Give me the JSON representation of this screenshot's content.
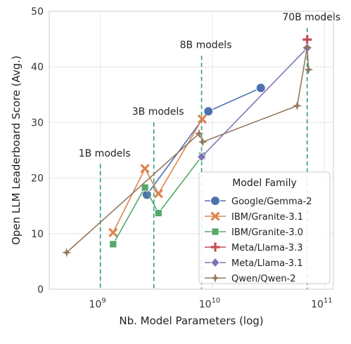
{
  "chart_data": {
    "type": "line",
    "xscale": "log",
    "xlim": [
      350000000,
      120000000000
    ],
    "ylim": [
      0,
      50
    ],
    "grid": true,
    "xlabel": "Nb. Model Parameters (log)",
    "ylabel": "Open LLM Leaderboard Score (Avg.)",
    "x_ticks": [
      {
        "value": 1000000000,
        "base": "10",
        "exp": "9"
      },
      {
        "value": 10000000000,
        "base": "10",
        "exp": "10"
      },
      {
        "value": 100000000000,
        "base": "10",
        "exp": "11"
      }
    ],
    "y_ticks": [
      0,
      10,
      20,
      30,
      40,
      50
    ],
    "legend": {
      "title": "Model Family",
      "placement": "lower right"
    },
    "annotations": [
      {
        "text": "1B models",
        "x": 1000000000,
        "y_top": 22.5
      },
      {
        "text": "3B models",
        "x": 3000000000,
        "y_top": 30
      },
      {
        "text": "8B models",
        "x": 8000000000,
        "y_top": 42
      },
      {
        "text": "70B models",
        "x": 70000000000,
        "y_top": 47
      }
    ],
    "series": [
      {
        "name": "Google/Gemma-2",
        "color": "#4c72b0",
        "marker": "circle",
        "points": [
          [
            2600000000,
            17
          ],
          [
            9200000000,
            32
          ],
          [
            27000000000,
            36.2
          ]
        ]
      },
      {
        "name": "IBM/Granite-3.1",
        "color": "#dd8452",
        "marker": "x",
        "points": [
          [
            1300000000,
            10.2
          ],
          [
            2500000000,
            21.7
          ],
          [
            3300000000,
            17.2
          ],
          [
            8100000000,
            30.6
          ]
        ]
      },
      {
        "name": "IBM/Granite-3.0",
        "color": "#55a868",
        "marker": "square",
        "points": [
          [
            1300000000,
            8.1
          ],
          [
            2500000000,
            18.3
          ],
          [
            3300000000,
            13.7
          ],
          [
            8100000000,
            24
          ]
        ]
      },
      {
        "name": "Meta/Llama-3.3",
        "color": "#c44e52",
        "marker": "plus",
        "points": [
          [
            70000000000,
            44.9
          ]
        ]
      },
      {
        "name": "Meta/Llama-3.1",
        "color": "#8172b3",
        "marker": "diamond",
        "points": [
          [
            8000000000,
            23.8
          ],
          [
            70000000000,
            43.4
          ]
        ]
      },
      {
        "name": "Qwen/Qwen-2",
        "color": "#937860",
        "marker": "star",
        "points": [
          [
            500000000,
            6.6
          ],
          [
            7600000000,
            28
          ],
          [
            8200000000,
            26.5
          ],
          [
            57000000000,
            33
          ],
          [
            70000000000,
            43.5
          ],
          [
            72000000000,
            39.5
          ]
        ]
      }
    ]
  }
}
